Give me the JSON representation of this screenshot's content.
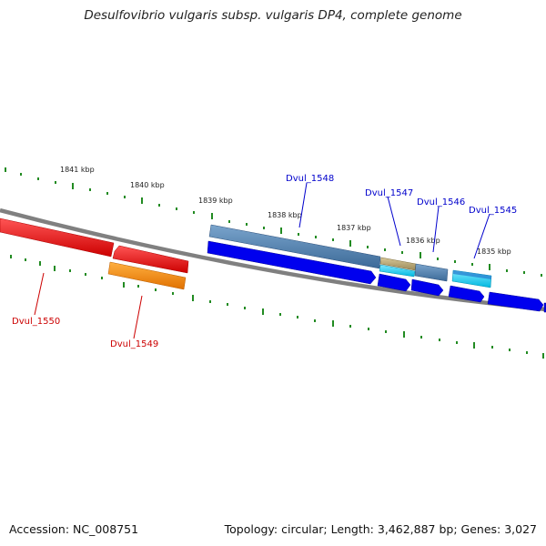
{
  "title": "Desulfovibrio vulgaris subsp. vulgaris DP4, complete genome",
  "footer": {
    "accession": "Accession: NC_008751",
    "summary": "Topology: circular; Length: 3,462,887 bp; Genes: 3,027"
  },
  "colors": {
    "backbone": "#808080",
    "tick": "#228b22",
    "plus_strand_label": "#0000cc",
    "minus_strand_label": "#cc0000"
  },
  "ruler": {
    "unit": "kbp",
    "ticks": [
      {
        "kbp": 1841,
        "label": "1841 kbp"
      },
      {
        "kbp": 1840,
        "label": "1840 kbp"
      },
      {
        "kbp": 1839,
        "label": "1839 kbp"
      },
      {
        "kbp": 1838,
        "label": "1838 kbp"
      },
      {
        "kbp": 1837,
        "label": "1837 kbp"
      },
      {
        "kbp": 1836,
        "label": "1836 kbp"
      },
      {
        "kbp": 1835,
        "label": "1835 kbp"
      }
    ]
  },
  "genes": [
    {
      "label": "Dvul_1548",
      "strand": "+",
      "color": "#4a7fb5",
      "labelColor": "#0000cc"
    },
    {
      "label": "Dvul_1547",
      "strand": "+",
      "color": "#c2b280",
      "labelColor": "#0000cc"
    },
    {
      "label": "Dvul_1546",
      "strand": "+",
      "color": "#4a7fb5",
      "labelColor": "#0000cc"
    },
    {
      "label": "Dvul_1545",
      "strand": "+",
      "color": "#29b6e0",
      "labelColor": "#0000cc"
    },
    {
      "label": "Dvul_1550",
      "strand": "-",
      "color": "#ee1111",
      "labelColor": "#cc0000"
    },
    {
      "label": "Dvul_1549",
      "strand": "-",
      "color": "#ff8c00",
      "labelColor": "#cc0000"
    }
  ]
}
